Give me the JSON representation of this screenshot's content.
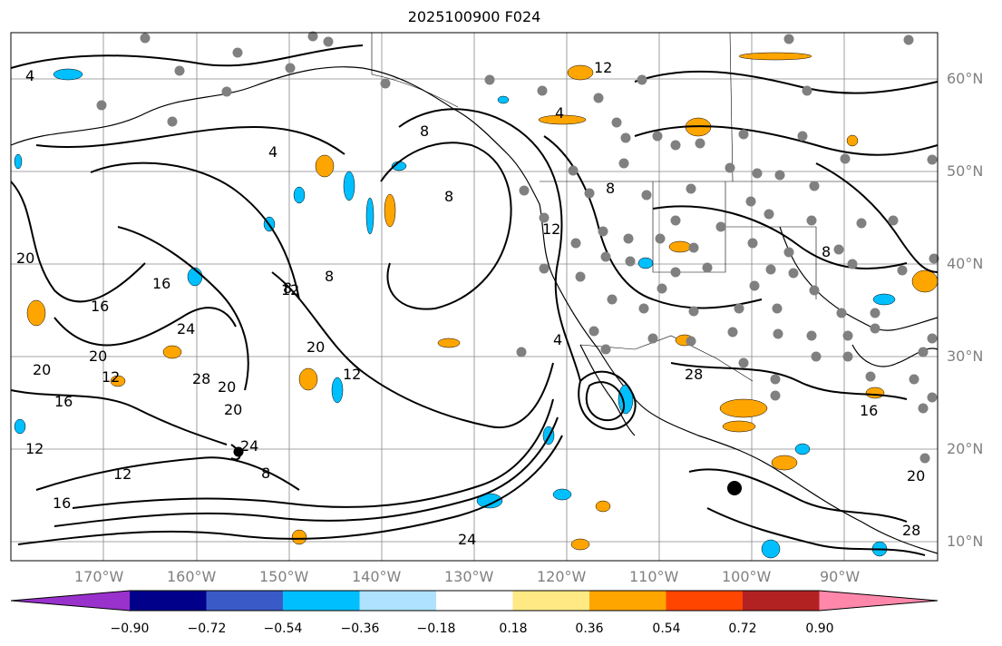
{
  "title": "2025100900 F024",
  "lat_labels": [
    "60°N",
    "50°N",
    "40°N",
    "30°N",
    "20°N",
    "10°N"
  ],
  "lon_labels": [
    "170°W",
    "160°W",
    "150°W",
    "140°W",
    "130°W",
    "120°W",
    "110°W",
    "100°W",
    "90°W"
  ],
  "contour_labels": [
    "4",
    "4",
    "8",
    "12",
    "16",
    "20",
    "24",
    "28",
    "12",
    "16",
    "20",
    "12",
    "8",
    "20",
    "16",
    "12",
    "20",
    "24",
    "28",
    "20",
    "8",
    "8",
    "12",
    "16",
    "20",
    "24",
    "28",
    "12",
    "8",
    "4",
    "20",
    "12",
    "8",
    "16",
    "4",
    "8"
  ],
  "colorbar": {
    "ticks": [
      "−0.90",
      "−0.72",
      "−0.54",
      "−0.36",
      "−0.18",
      "0.18",
      "0.36",
      "0.54",
      "0.72",
      "0.90"
    ],
    "colors": [
      "#9932cc",
      "#00008b",
      "#3a5bc7",
      "#00bfff",
      "#aee2ff",
      "#ffffff",
      "#ffe985",
      "#ffa500",
      "#ff4500",
      "#b22222",
      "#ff88aa"
    ]
  }
}
